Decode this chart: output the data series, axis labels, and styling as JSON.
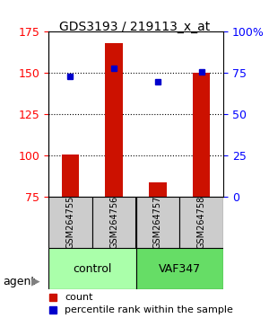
{
  "title": "GDS3193 / 219113_x_at",
  "samples": [
    "GSM264755",
    "GSM264756",
    "GSM264757",
    "GSM264758"
  ],
  "counts": [
    101,
    168,
    84,
    150
  ],
  "percentile_ranks": [
    148,
    153,
    145,
    151
  ],
  "groups": [
    "control",
    "control",
    "VAF347",
    "VAF347"
  ],
  "group_labels": [
    "control",
    "VAF347"
  ],
  "group_colors": [
    "#aaffaa",
    "#55dd55"
  ],
  "ylim_left": [
    75,
    175
  ],
  "yticks_left": [
    75,
    100,
    125,
    150,
    175
  ],
  "ylim_right": [
    0,
    100
  ],
  "yticks_right": [
    0,
    25,
    50,
    75,
    100
  ],
  "ytick_labels_right": [
    "0",
    "25",
    "50",
    "75",
    "100%"
  ],
  "bar_color": "#cc1100",
  "dot_color": "#0000cc",
  "sample_box_color": "#cccccc",
  "background_color": "#ffffff",
  "legend_count_color": "#cc1100",
  "legend_pct_color": "#0000cc"
}
